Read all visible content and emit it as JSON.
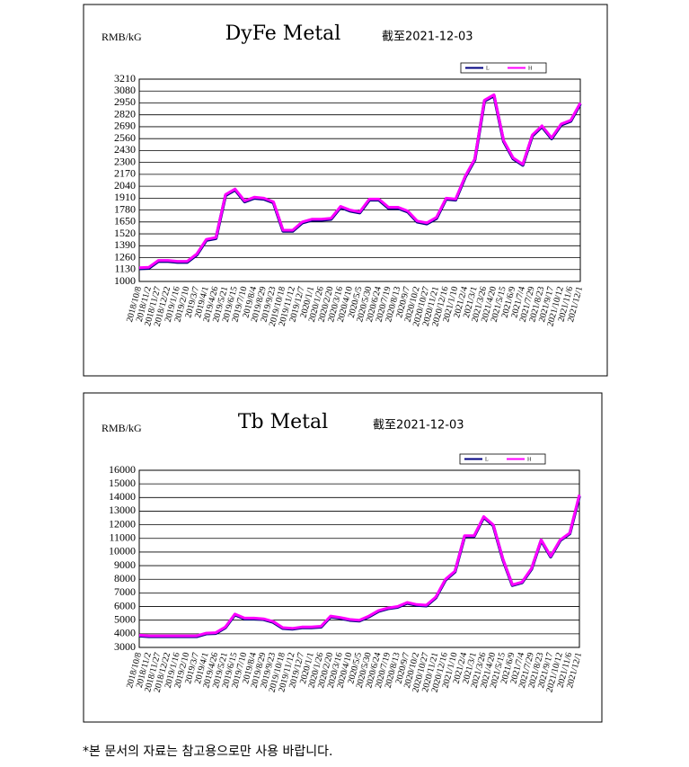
{
  "chart_data": [
    {
      "type": "line",
      "title": "DyFe Metal",
      "subtitle": "截至2021-12-03",
      "y_label": "RMB/kG",
      "categories": [
        "2018/10/8",
        "2018/11/2",
        "2018/11/27",
        "2018/12/22",
        "2019/1/16",
        "2019/2/10",
        "2019/3/7",
        "2019/4/1",
        "2019/4/26",
        "2019/5/21",
        "2019/6/15",
        "2019/7/10",
        "2019/8/4",
        "2019/8/29",
        "2019/9/23",
        "2019/10/18",
        "2019/11/12",
        "2019/12/7",
        "2020/1/1",
        "2020/1/26",
        "2020/2/20",
        "2020/3/16",
        "2020/4/10",
        "2020/5/5",
        "2020/5/30",
        "2020/6/24",
        "2020/7/19",
        "2020/8/13",
        "2020/9/7",
        "2020/10/2",
        "2020/10/27",
        "2020/11/21",
        "2020/12/16",
        "2021/1/10",
        "2021/2/4",
        "2021/3/1",
        "2021/3/26",
        "2021/4/20",
        "2021/5/15",
        "2021/6/9",
        "2021/7/4",
        "2021/7/29",
        "2021/8/23",
        "2021/9/17",
        "2021/10/12",
        "2021/11/6",
        "2021/12/1"
      ],
      "series": [
        {
          "name": "L",
          "color": "#000080",
          "values": [
            1140,
            1145,
            1220,
            1220,
            1210,
            1210,
            1290,
            1450,
            1470,
            1940,
            2000,
            1870,
            1910,
            1900,
            1860,
            1550,
            1550,
            1640,
            1670,
            1670,
            1680,
            1810,
            1770,
            1750,
            1890,
            1890,
            1800,
            1800,
            1760,
            1650,
            1630,
            1690,
            1900,
            1890,
            2140,
            2330,
            2970,
            3030,
            2530,
            2340,
            2270,
            2590,
            2690,
            2560,
            2710,
            2750,
            2940
          ]
        },
        {
          "name": "H",
          "color": "#ff00ff",
          "values": [
            1150,
            1155,
            1230,
            1230,
            1220,
            1220,
            1300,
            1460,
            1480,
            1950,
            2010,
            1880,
            1920,
            1910,
            1870,
            1560,
            1560,
            1650,
            1680,
            1680,
            1690,
            1820,
            1780,
            1760,
            1900,
            1900,
            1810,
            1810,
            1770,
            1660,
            1640,
            1700,
            1910,
            1900,
            2150,
            2340,
            2980,
            3040,
            2540,
            2350,
            2280,
            2600,
            2700,
            2570,
            2720,
            2760,
            2950
          ]
        }
      ],
      "ylim": [
        1000,
        3210
      ],
      "yticks": [
        1000,
        1130,
        1260,
        1390,
        1520,
        1650,
        1780,
        1910,
        2040,
        2170,
        2300,
        2430,
        2560,
        2690,
        2820,
        2950,
        3080,
        3210
      ],
      "grid": true,
      "legend": "top-right"
    },
    {
      "type": "line",
      "title": "Tb Metal",
      "subtitle": "截至2021-12-03",
      "y_label": "RMB/kG",
      "categories": [
        "2018/10/8",
        "2018/11/2",
        "2018/11/27",
        "2018/12/22",
        "2019/1/16",
        "2019/2/10",
        "2019/3/7",
        "2019/4/1",
        "2019/4/26",
        "2019/5/21",
        "2019/6/15",
        "2019/7/10",
        "2019/8/4",
        "2019/8/29",
        "2019/9/23",
        "2019/10/18",
        "2019/11/12",
        "2019/12/7",
        "2020/1/1",
        "2020/1/26",
        "2020/2/20",
        "2020/3/16",
        "2020/4/10",
        "2020/5/5",
        "2020/5/30",
        "2020/6/24",
        "2020/7/19",
        "2020/8/13",
        "2020/9/7",
        "2020/10/2",
        "2020/10/27",
        "2020/11/21",
        "2020/12/16",
        "2021/1/10",
        "2021/2/4",
        "2021/3/1",
        "2021/3/26",
        "2021/4/20",
        "2021/5/15",
        "2021/6/9",
        "2021/7/4",
        "2021/7/29",
        "2021/8/23",
        "2021/9/17",
        "2021/10/12",
        "2021/11/6",
        "2021/12/1"
      ],
      "series": [
        {
          "name": "L",
          "color": "#000080",
          "values": [
            3850,
            3800,
            3800,
            3800,
            3800,
            3800,
            3800,
            4000,
            4030,
            4450,
            5400,
            5100,
            5100,
            5050,
            4850,
            4400,
            4350,
            4450,
            4450,
            4500,
            5250,
            5150,
            5000,
            4950,
            5250,
            5650,
            5850,
            5950,
            6250,
            6100,
            6050,
            6650,
            7950,
            8550,
            11150,
            11150,
            12550,
            11950,
            9450,
            7550,
            7750,
            8750,
            10850,
            9650,
            10850,
            11350,
            14100
          ]
        },
        {
          "name": "H",
          "color": "#ff00ff",
          "values": [
            3900,
            3850,
            3850,
            3850,
            3850,
            3850,
            3850,
            4050,
            4080,
            4500,
            5450,
            5150,
            5150,
            5100,
            4900,
            4450,
            4400,
            4500,
            4500,
            4550,
            5300,
            5200,
            5050,
            5000,
            5300,
            5700,
            5900,
            6000,
            6300,
            6150,
            6100,
            6700,
            8000,
            8600,
            11200,
            11200,
            12600,
            12000,
            9500,
            7600,
            7800,
            8800,
            10900,
            9700,
            10900,
            11400,
            14200
          ]
        }
      ],
      "ylim": [
        3000,
        16000
      ],
      "yticks": [
        3000,
        4000,
        5000,
        6000,
        7000,
        8000,
        9000,
        10000,
        11000,
        12000,
        13000,
        14000,
        15000,
        16000
      ],
      "grid": true,
      "legend": "top-right"
    }
  ],
  "footnote": "*본 문서의 자료는 참고용으로만 사용 바랍니다."
}
